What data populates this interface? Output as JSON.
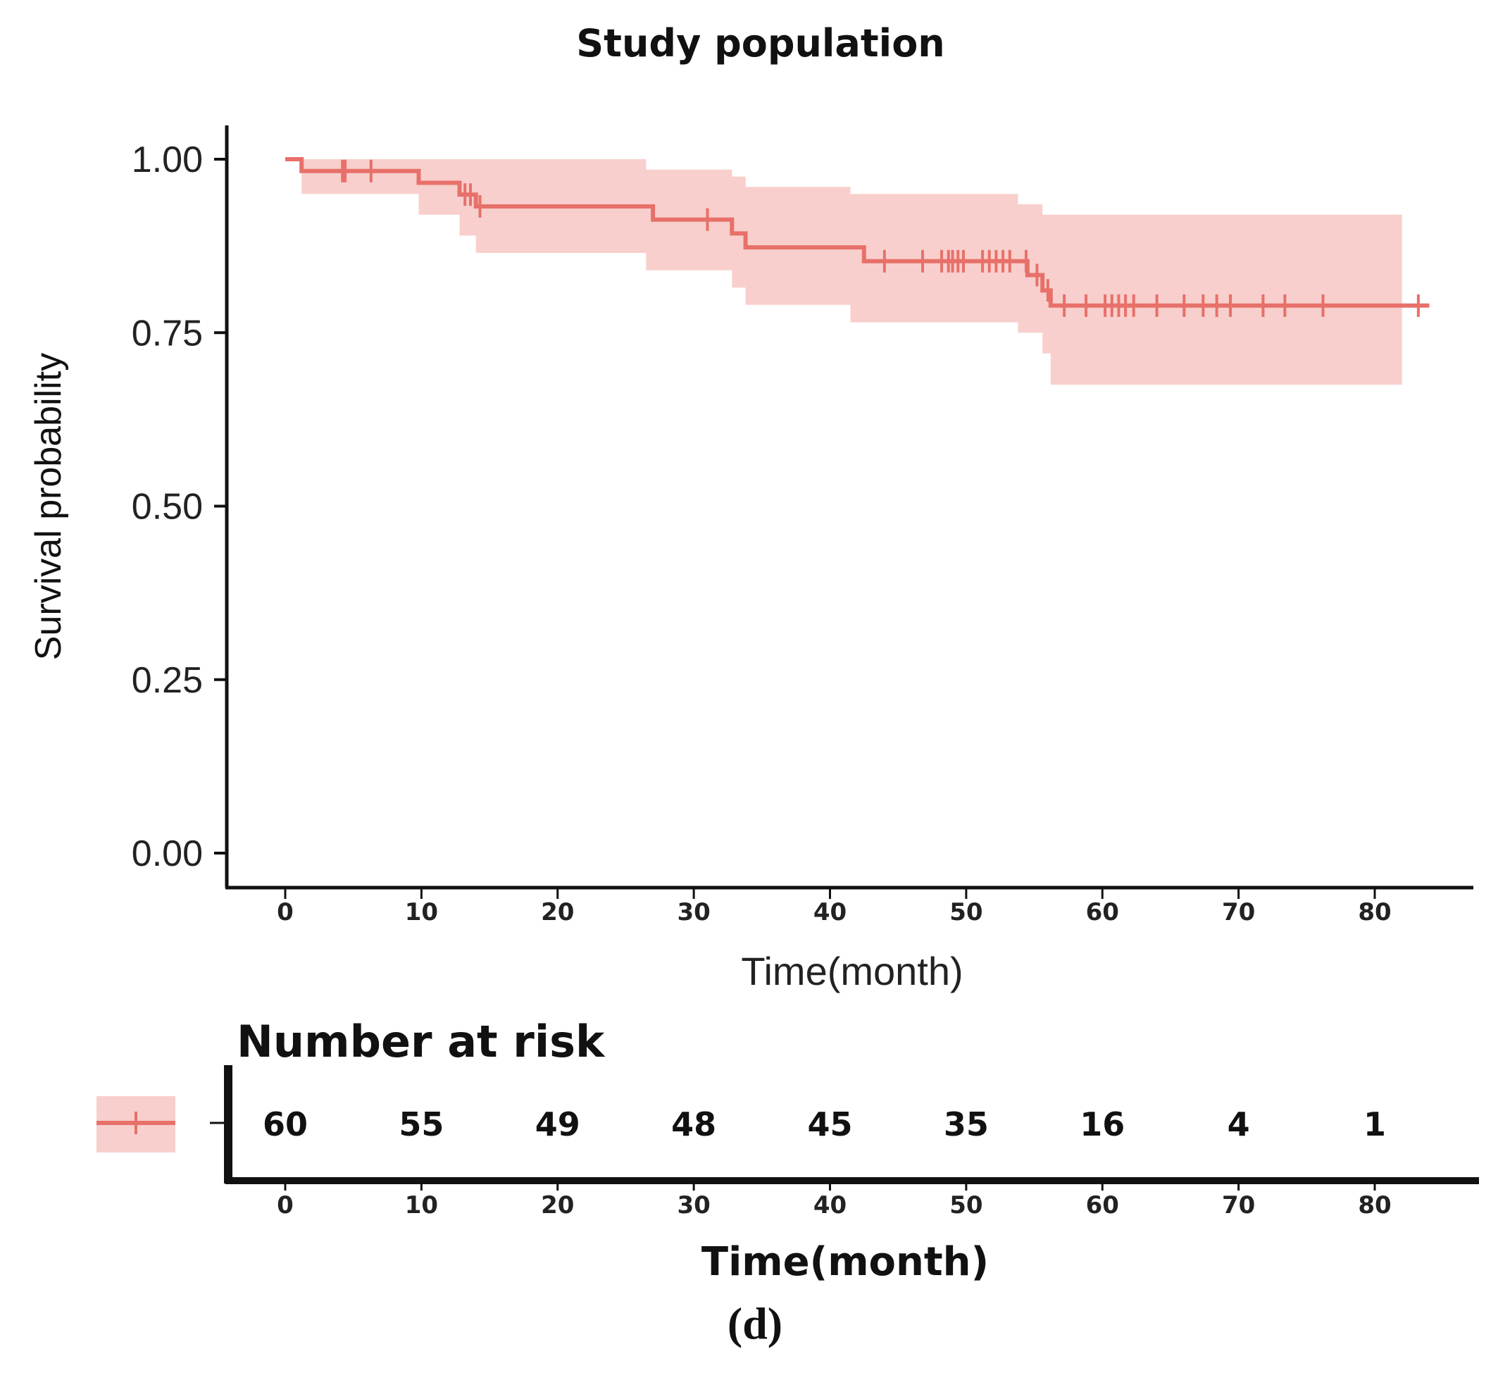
{
  "chart_data": {
    "type": "line",
    "subtype": "kaplan-meier",
    "title": "Study population",
    "xlabel": "Time(month)",
    "ylabel": "Survival probability",
    "xlim": [
      0,
      84
    ],
    "ylim": [
      0,
      1
    ],
    "x_ticks": [
      0,
      10,
      20,
      30,
      40,
      50,
      60,
      70,
      80
    ],
    "x_tick_labels": [
      "0",
      "10",
      "20",
      "30",
      "40",
      "50",
      "60",
      "70",
      "80"
    ],
    "y_ticks": [
      0,
      0.25,
      0.5,
      0.75,
      1.0
    ],
    "y_tick_labels": [
      "0.00",
      "0.25",
      "0.50",
      "0.75",
      "1.00"
    ],
    "color": "#e8706a",
    "band_color": "#f8cfcc",
    "series": [
      {
        "name": "Study population",
        "steps": [
          {
            "time": 0,
            "surv": 1.0
          },
          {
            "time": 1.2,
            "surv": 0.983
          },
          {
            "time": 9.8,
            "surv": 0.966
          },
          {
            "time": 12.8,
            "surv": 0.949
          },
          {
            "time": 14.0,
            "surv": 0.932
          },
          {
            "time": 27.0,
            "surv": 0.913
          },
          {
            "time": 32.8,
            "surv": 0.893
          },
          {
            "time": 33.8,
            "surv": 0.873
          },
          {
            "time": 42.5,
            "surv": 0.853
          },
          {
            "time": 54.5,
            "surv": 0.833
          },
          {
            "time": 55.6,
            "surv": 0.811
          },
          {
            "time": 56.2,
            "surv": 0.789
          }
        ],
        "end_time": 84,
        "ci_band": [
          {
            "time": 0,
            "lower": 1.0,
            "upper": 1.0
          },
          {
            "time": 1.2,
            "lower": 0.95,
            "upper": 1.0
          },
          {
            "time": 9.8,
            "lower": 0.92,
            "upper": 1.0
          },
          {
            "time": 12.8,
            "lower": 0.89,
            "upper": 1.0
          },
          {
            "time": 14.0,
            "lower": 0.865,
            "upper": 1.0
          },
          {
            "time": 26.5,
            "lower": 0.84,
            "upper": 0.985
          },
          {
            "time": 32.8,
            "lower": 0.815,
            "upper": 0.975
          },
          {
            "time": 33.8,
            "lower": 0.79,
            "upper": 0.96
          },
          {
            "time": 41.5,
            "lower": 0.765,
            "upper": 0.95
          },
          {
            "time": 53.8,
            "lower": 0.75,
            "upper": 0.935
          },
          {
            "time": 55.6,
            "lower": 0.72,
            "upper": 0.92
          },
          {
            "time": 56.2,
            "lower": 0.675,
            "upper": 0.92
          }
        ],
        "ci_end_time": 82,
        "censored": [
          {
            "time": 4.2,
            "surv": 0.983
          },
          {
            "time": 4.4,
            "surv": 0.983
          },
          {
            "time": 6.3,
            "surv": 0.983
          },
          {
            "time": 13.2,
            "surv": 0.949
          },
          {
            "time": 13.6,
            "surv": 0.949
          },
          {
            "time": 14.3,
            "surv": 0.932
          },
          {
            "time": 31.0,
            "surv": 0.913
          },
          {
            "time": 44.0,
            "surv": 0.853
          },
          {
            "time": 46.8,
            "surv": 0.853
          },
          {
            "time": 48.2,
            "surv": 0.853
          },
          {
            "time": 48.7,
            "surv": 0.853
          },
          {
            "time": 49.0,
            "surv": 0.853
          },
          {
            "time": 49.4,
            "surv": 0.853
          },
          {
            "time": 49.8,
            "surv": 0.853
          },
          {
            "time": 51.2,
            "surv": 0.853
          },
          {
            "time": 51.7,
            "surv": 0.853
          },
          {
            "time": 52.2,
            "surv": 0.853
          },
          {
            "time": 52.7,
            "surv": 0.853
          },
          {
            "time": 53.2,
            "surv": 0.853
          },
          {
            "time": 54.4,
            "surv": 0.853
          },
          {
            "time": 55.2,
            "surv": 0.833
          },
          {
            "time": 56.0,
            "surv": 0.811
          },
          {
            "time": 57.2,
            "surv": 0.789
          },
          {
            "time": 58.8,
            "surv": 0.789
          },
          {
            "time": 60.2,
            "surv": 0.789
          },
          {
            "time": 60.7,
            "surv": 0.789
          },
          {
            "time": 61.2,
            "surv": 0.789
          },
          {
            "time": 61.7,
            "surv": 0.789
          },
          {
            "time": 62.3,
            "surv": 0.789
          },
          {
            "time": 64.0,
            "surv": 0.789
          },
          {
            "time": 66.0,
            "surv": 0.789
          },
          {
            "time": 67.4,
            "surv": 0.789
          },
          {
            "time": 68.4,
            "surv": 0.789
          },
          {
            "time": 69.4,
            "surv": 0.789
          },
          {
            "time": 71.8,
            "surv": 0.789
          },
          {
            "time": 73.4,
            "surv": 0.789
          },
          {
            "time": 76.2,
            "surv": 0.789
          },
          {
            "time": 83.2,
            "surv": 0.789
          }
        ]
      }
    ],
    "risk_table": {
      "title": "Number at risk",
      "xlabel": "Time(month)",
      "times": [
        0,
        10,
        20,
        30,
        40,
        50,
        60,
        70,
        80
      ],
      "time_labels": [
        "0",
        "10",
        "20",
        "30",
        "40",
        "50",
        "60",
        "70",
        "80"
      ],
      "counts": [
        "60",
        "55",
        "49",
        "48",
        "45",
        "35",
        "16",
        "4",
        "1"
      ]
    },
    "panel_label": "(d)"
  }
}
